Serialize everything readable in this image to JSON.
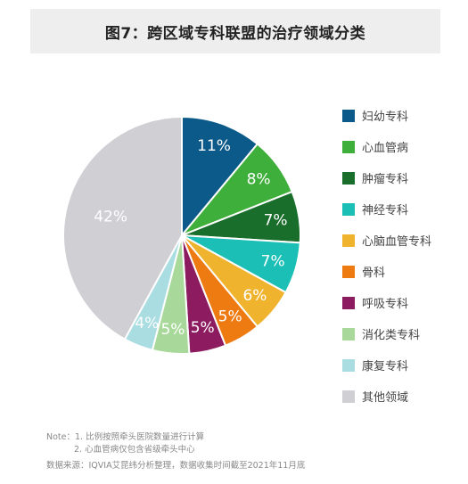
{
  "title": "图7：跨区域专科联盟的治疗领域分类",
  "chart_data": {
    "type": "pie",
    "slices": [
      {
        "label": "妇幼专科",
        "value": 11,
        "display": "11%",
        "color": "#0c5a8a"
      },
      {
        "label": "心血管病",
        "value": 8,
        "display": "8%",
        "color": "#3eaf3a"
      },
      {
        "label": "肿瘤专科",
        "value": 7,
        "display": "7%",
        "color": "#1a6e2c"
      },
      {
        "label": "神经专科",
        "value": 7,
        "display": "7%",
        "color": "#1bbfb6"
      },
      {
        "label": "心脑血管专科",
        "value": 6,
        "display": "6%",
        "color": "#f0b32d"
      },
      {
        "label": "骨科",
        "value": 5,
        "display": "5%",
        "color": "#ee7a12"
      },
      {
        "label": "呼吸专科",
        "value": 5,
        "display": "5%",
        "color": "#8c1b5f"
      },
      {
        "label": "消化类专科",
        "value": 5,
        "display": "5%",
        "color": "#a8d99a"
      },
      {
        "label": "康复专科",
        "value": 4,
        "display": "4%",
        "color": "#a9dde2"
      },
      {
        "label": "其他领域",
        "value": 42,
        "display": "42%",
        "color": "#cfcfd4"
      }
    ]
  },
  "notes": {
    "line1": "Note：1. 比例按照牵头医院数量进行计算",
    "line2": "2. 心血管病仅包含省级牵头中心"
  },
  "source": "数据来源：IQVIA艾昆纬分析整理，数据收集时间截至2021年11月底"
}
